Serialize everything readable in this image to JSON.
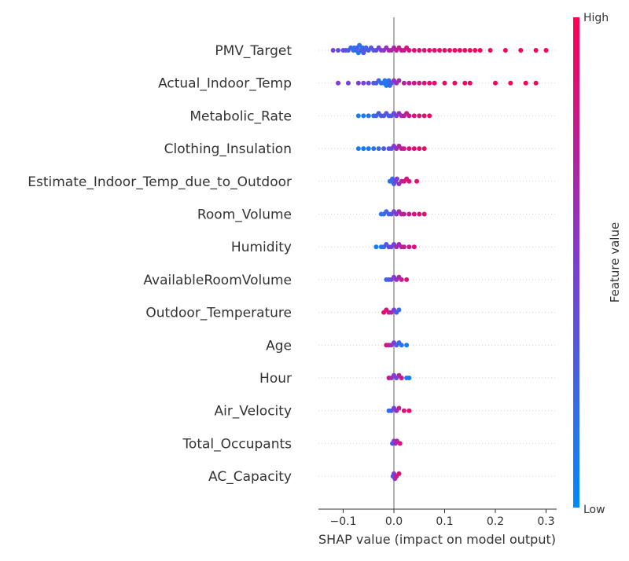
{
  "chart_data": {
    "type": "scatter",
    "subtype": "shap-beeswarm",
    "xlabel": "SHAP value (impact on model output)",
    "xlim": [
      -0.15,
      0.32
    ],
    "x_ticks": [
      {
        "value": -0.1,
        "label": "−0.1"
      },
      {
        "value": 0.0,
        "label": "0.0"
      },
      {
        "value": 0.1,
        "label": "0.1"
      },
      {
        "value": 0.2,
        "label": "0.2"
      },
      {
        "value": 0.3,
        "label": "0.3"
      }
    ],
    "zero_line": true,
    "row_gridlines": "dotted",
    "colorbar": {
      "label": "Feature value",
      "high_label": "High",
      "low_label": "Low",
      "low_color": "#008bfb",
      "high_color": "#ff0052"
    },
    "features": [
      {
        "name": "PMV_Target",
        "points": [
          [
            -0.12,
            0.45
          ],
          [
            -0.11,
            0.4
          ],
          [
            -0.1,
            0.42
          ],
          [
            -0.095,
            0.38
          ],
          [
            -0.09,
            0.3
          ],
          [
            -0.085,
            0.25
          ],
          [
            -0.08,
            0.2
          ],
          [
            -0.078,
            0.15
          ],
          [
            -0.075,
            0.22
          ],
          [
            -0.072,
            0.3
          ],
          [
            -0.07,
            0.12
          ],
          [
            -0.068,
            0.18
          ],
          [
            -0.065,
            0.25
          ],
          [
            -0.062,
            0.2
          ],
          [
            -0.06,
            0.3
          ],
          [
            -0.058,
            0.35
          ],
          [
            -0.055,
            0.25
          ],
          [
            -0.05,
            0.3
          ],
          [
            -0.045,
            0.35
          ],
          [
            -0.04,
            0.3
          ],
          [
            -0.035,
            0.4
          ],
          [
            -0.03,
            0.45
          ],
          [
            -0.025,
            0.5
          ],
          [
            -0.02,
            0.55
          ],
          [
            -0.015,
            0.6
          ],
          [
            -0.01,
            0.65
          ],
          [
            -0.005,
            0.7
          ],
          [
            0.0,
            0.7
          ],
          [
            0.005,
            0.75
          ],
          [
            0.01,
            0.78
          ],
          [
            0.015,
            0.8
          ],
          [
            0.02,
            0.8
          ],
          [
            0.025,
            0.82
          ],
          [
            0.03,
            0.85
          ],
          [
            0.04,
            0.85
          ],
          [
            0.05,
            0.88
          ],
          [
            0.06,
            0.88
          ],
          [
            0.07,
            0.9
          ],
          [
            0.08,
            0.9
          ],
          [
            0.09,
            0.9
          ],
          [
            0.1,
            0.92
          ],
          [
            0.11,
            0.92
          ],
          [
            0.12,
            0.93
          ],
          [
            0.13,
            0.93
          ],
          [
            0.14,
            0.94
          ],
          [
            0.15,
            0.95
          ],
          [
            0.16,
            0.95
          ],
          [
            0.17,
            0.95
          ],
          [
            0.19,
            0.96
          ],
          [
            0.22,
            0.97
          ],
          [
            0.25,
            0.98
          ],
          [
            0.28,
            0.98
          ],
          [
            0.3,
            0.99
          ]
        ]
      },
      {
        "name": "Actual_Indoor_Temp",
        "points": [
          [
            -0.11,
            0.5
          ],
          [
            -0.09,
            0.45
          ],
          [
            -0.07,
            0.5
          ],
          [
            -0.06,
            0.45
          ],
          [
            -0.05,
            0.4
          ],
          [
            -0.04,
            0.35
          ],
          [
            -0.035,
            0.3
          ],
          [
            -0.03,
            0.25
          ],
          [
            -0.025,
            0.2
          ],
          [
            -0.02,
            0.15
          ],
          [
            -0.018,
            0.12
          ],
          [
            -0.015,
            0.1
          ],
          [
            -0.012,
            0.15
          ],
          [
            -0.01,
            0.2
          ],
          [
            -0.008,
            0.25
          ],
          [
            -0.005,
            0.3
          ],
          [
            0.0,
            0.55
          ],
          [
            0.005,
            0.6
          ],
          [
            0.01,
            0.65
          ],
          [
            0.02,
            0.7
          ],
          [
            0.03,
            0.75
          ],
          [
            0.04,
            0.8
          ],
          [
            0.05,
            0.82
          ],
          [
            0.06,
            0.85
          ],
          [
            0.07,
            0.88
          ],
          [
            0.08,
            0.9
          ],
          [
            0.1,
            0.92
          ],
          [
            0.12,
            0.93
          ],
          [
            0.14,
            0.95
          ],
          [
            0.15,
            0.95
          ],
          [
            0.2,
            0.97
          ],
          [
            0.23,
            0.98
          ],
          [
            0.26,
            0.98
          ],
          [
            0.28,
            0.99
          ]
        ]
      },
      {
        "name": "Metabolic_Rate",
        "points": [
          [
            -0.07,
            0.1
          ],
          [
            -0.06,
            0.12
          ],
          [
            -0.05,
            0.15
          ],
          [
            -0.04,
            0.2
          ],
          [
            -0.035,
            0.25
          ],
          [
            -0.03,
            0.3
          ],
          [
            -0.025,
            0.3
          ],
          [
            -0.02,
            0.3
          ],
          [
            -0.015,
            0.35
          ],
          [
            -0.01,
            0.3
          ],
          [
            -0.005,
            0.35
          ],
          [
            0.0,
            0.4
          ],
          [
            0.005,
            0.5
          ],
          [
            0.01,
            0.6
          ],
          [
            0.015,
            0.65
          ],
          [
            0.02,
            0.7
          ],
          [
            0.025,
            0.75
          ],
          [
            0.03,
            0.8
          ],
          [
            0.04,
            0.85
          ],
          [
            0.05,
            0.88
          ],
          [
            0.06,
            0.9
          ],
          [
            0.07,
            0.92
          ]
        ]
      },
      {
        "name": "Clothing_Insulation",
        "points": [
          [
            -0.07,
            0.1
          ],
          [
            -0.06,
            0.1
          ],
          [
            -0.05,
            0.12
          ],
          [
            -0.04,
            0.15
          ],
          [
            -0.03,
            0.2
          ],
          [
            -0.02,
            0.3
          ],
          [
            -0.01,
            0.35
          ],
          [
            -0.005,
            0.4
          ],
          [
            0.0,
            0.5
          ],
          [
            0.005,
            0.6
          ],
          [
            0.01,
            0.7
          ],
          [
            0.015,
            0.75
          ],
          [
            0.02,
            0.8
          ],
          [
            0.03,
            0.85
          ],
          [
            0.04,
            0.88
          ],
          [
            0.05,
            0.9
          ],
          [
            0.06,
            0.92
          ]
        ]
      },
      {
        "name": "Estimate_Indoor_Temp_due_to_Outdoor",
        "points": [
          [
            -0.008,
            0.15
          ],
          [
            -0.005,
            0.2
          ],
          [
            -0.003,
            0.25
          ],
          [
            0.0,
            0.3
          ],
          [
            0.003,
            0.4
          ],
          [
            0.006,
            0.5
          ],
          [
            0.01,
            0.6
          ],
          [
            0.015,
            0.7
          ],
          [
            0.02,
            0.8
          ],
          [
            0.025,
            0.85
          ],
          [
            0.03,
            0.88
          ],
          [
            0.045,
            0.9
          ]
        ]
      },
      {
        "name": "Room_Volume",
        "points": [
          [
            -0.025,
            0.15
          ],
          [
            -0.02,
            0.2
          ],
          [
            -0.015,
            0.25
          ],
          [
            -0.01,
            0.3
          ],
          [
            -0.005,
            0.35
          ],
          [
            0.0,
            0.45
          ],
          [
            0.005,
            0.55
          ],
          [
            0.01,
            0.65
          ],
          [
            0.015,
            0.7
          ],
          [
            0.02,
            0.75
          ],
          [
            0.03,
            0.8
          ],
          [
            0.04,
            0.85
          ],
          [
            0.05,
            0.88
          ],
          [
            0.06,
            0.9
          ]
        ]
      },
      {
        "name": "Humidity",
        "points": [
          [
            -0.035,
            0.1
          ],
          [
            -0.025,
            0.15
          ],
          [
            -0.02,
            0.2
          ],
          [
            -0.015,
            0.3
          ],
          [
            -0.01,
            0.4
          ],
          [
            -0.005,
            0.45
          ],
          [
            0.0,
            0.5
          ],
          [
            0.005,
            0.6
          ],
          [
            0.01,
            0.65
          ],
          [
            0.015,
            0.7
          ],
          [
            0.02,
            0.75
          ],
          [
            0.03,
            0.8
          ],
          [
            0.04,
            0.85
          ]
        ]
      },
      {
        "name": "AvailableRoomVolume",
        "points": [
          [
            -0.015,
            0.2
          ],
          [
            -0.01,
            0.3
          ],
          [
            -0.005,
            0.4
          ],
          [
            0.0,
            0.5
          ],
          [
            0.005,
            0.6
          ],
          [
            0.01,
            0.65
          ],
          [
            0.015,
            0.75
          ],
          [
            0.025,
            0.85
          ]
        ]
      },
      {
        "name": "Outdoor_Temperature",
        "points": [
          [
            -0.02,
            0.9
          ],
          [
            -0.015,
            0.85
          ],
          [
            -0.01,
            0.8
          ],
          [
            -0.005,
            0.65
          ],
          [
            0.0,
            0.5
          ],
          [
            0.005,
            0.3
          ],
          [
            0.01,
            0.2
          ]
        ]
      },
      {
        "name": "Age",
        "points": [
          [
            -0.015,
            0.85
          ],
          [
            -0.01,
            0.75
          ],
          [
            -0.005,
            0.6
          ],
          [
            0.0,
            0.5
          ],
          [
            0.005,
            0.3
          ],
          [
            0.01,
            0.2
          ],
          [
            0.015,
            0.15
          ],
          [
            0.025,
            0.1
          ]
        ]
      },
      {
        "name": "Hour",
        "points": [
          [
            -0.01,
            0.8
          ],
          [
            -0.005,
            0.6
          ],
          [
            0.0,
            0.5
          ],
          [
            0.005,
            0.4
          ],
          [
            0.01,
            0.7
          ],
          [
            0.015,
            0.8
          ],
          [
            0.025,
            0.1
          ],
          [
            0.03,
            0.1
          ]
        ]
      },
      {
        "name": "Air_Velocity",
        "points": [
          [
            -0.01,
            0.2
          ],
          [
            -0.005,
            0.3
          ],
          [
            0.0,
            0.45
          ],
          [
            0.005,
            0.6
          ],
          [
            0.01,
            0.75
          ],
          [
            0.02,
            0.85
          ],
          [
            0.03,
            0.9
          ]
        ]
      },
      {
        "name": "Total_Occupants",
        "points": [
          [
            -0.003,
            0.3
          ],
          [
            0.0,
            0.5
          ],
          [
            0.003,
            0.6
          ],
          [
            0.006,
            0.7
          ],
          [
            0.012,
            0.85
          ]
        ]
      },
      {
        "name": "AC_Capacity",
        "points": [
          [
            -0.002,
            0.3
          ],
          [
            0.0,
            0.5
          ],
          [
            0.002,
            0.6
          ],
          [
            0.005,
            0.8
          ],
          [
            0.01,
            0.9
          ]
        ]
      }
    ]
  }
}
